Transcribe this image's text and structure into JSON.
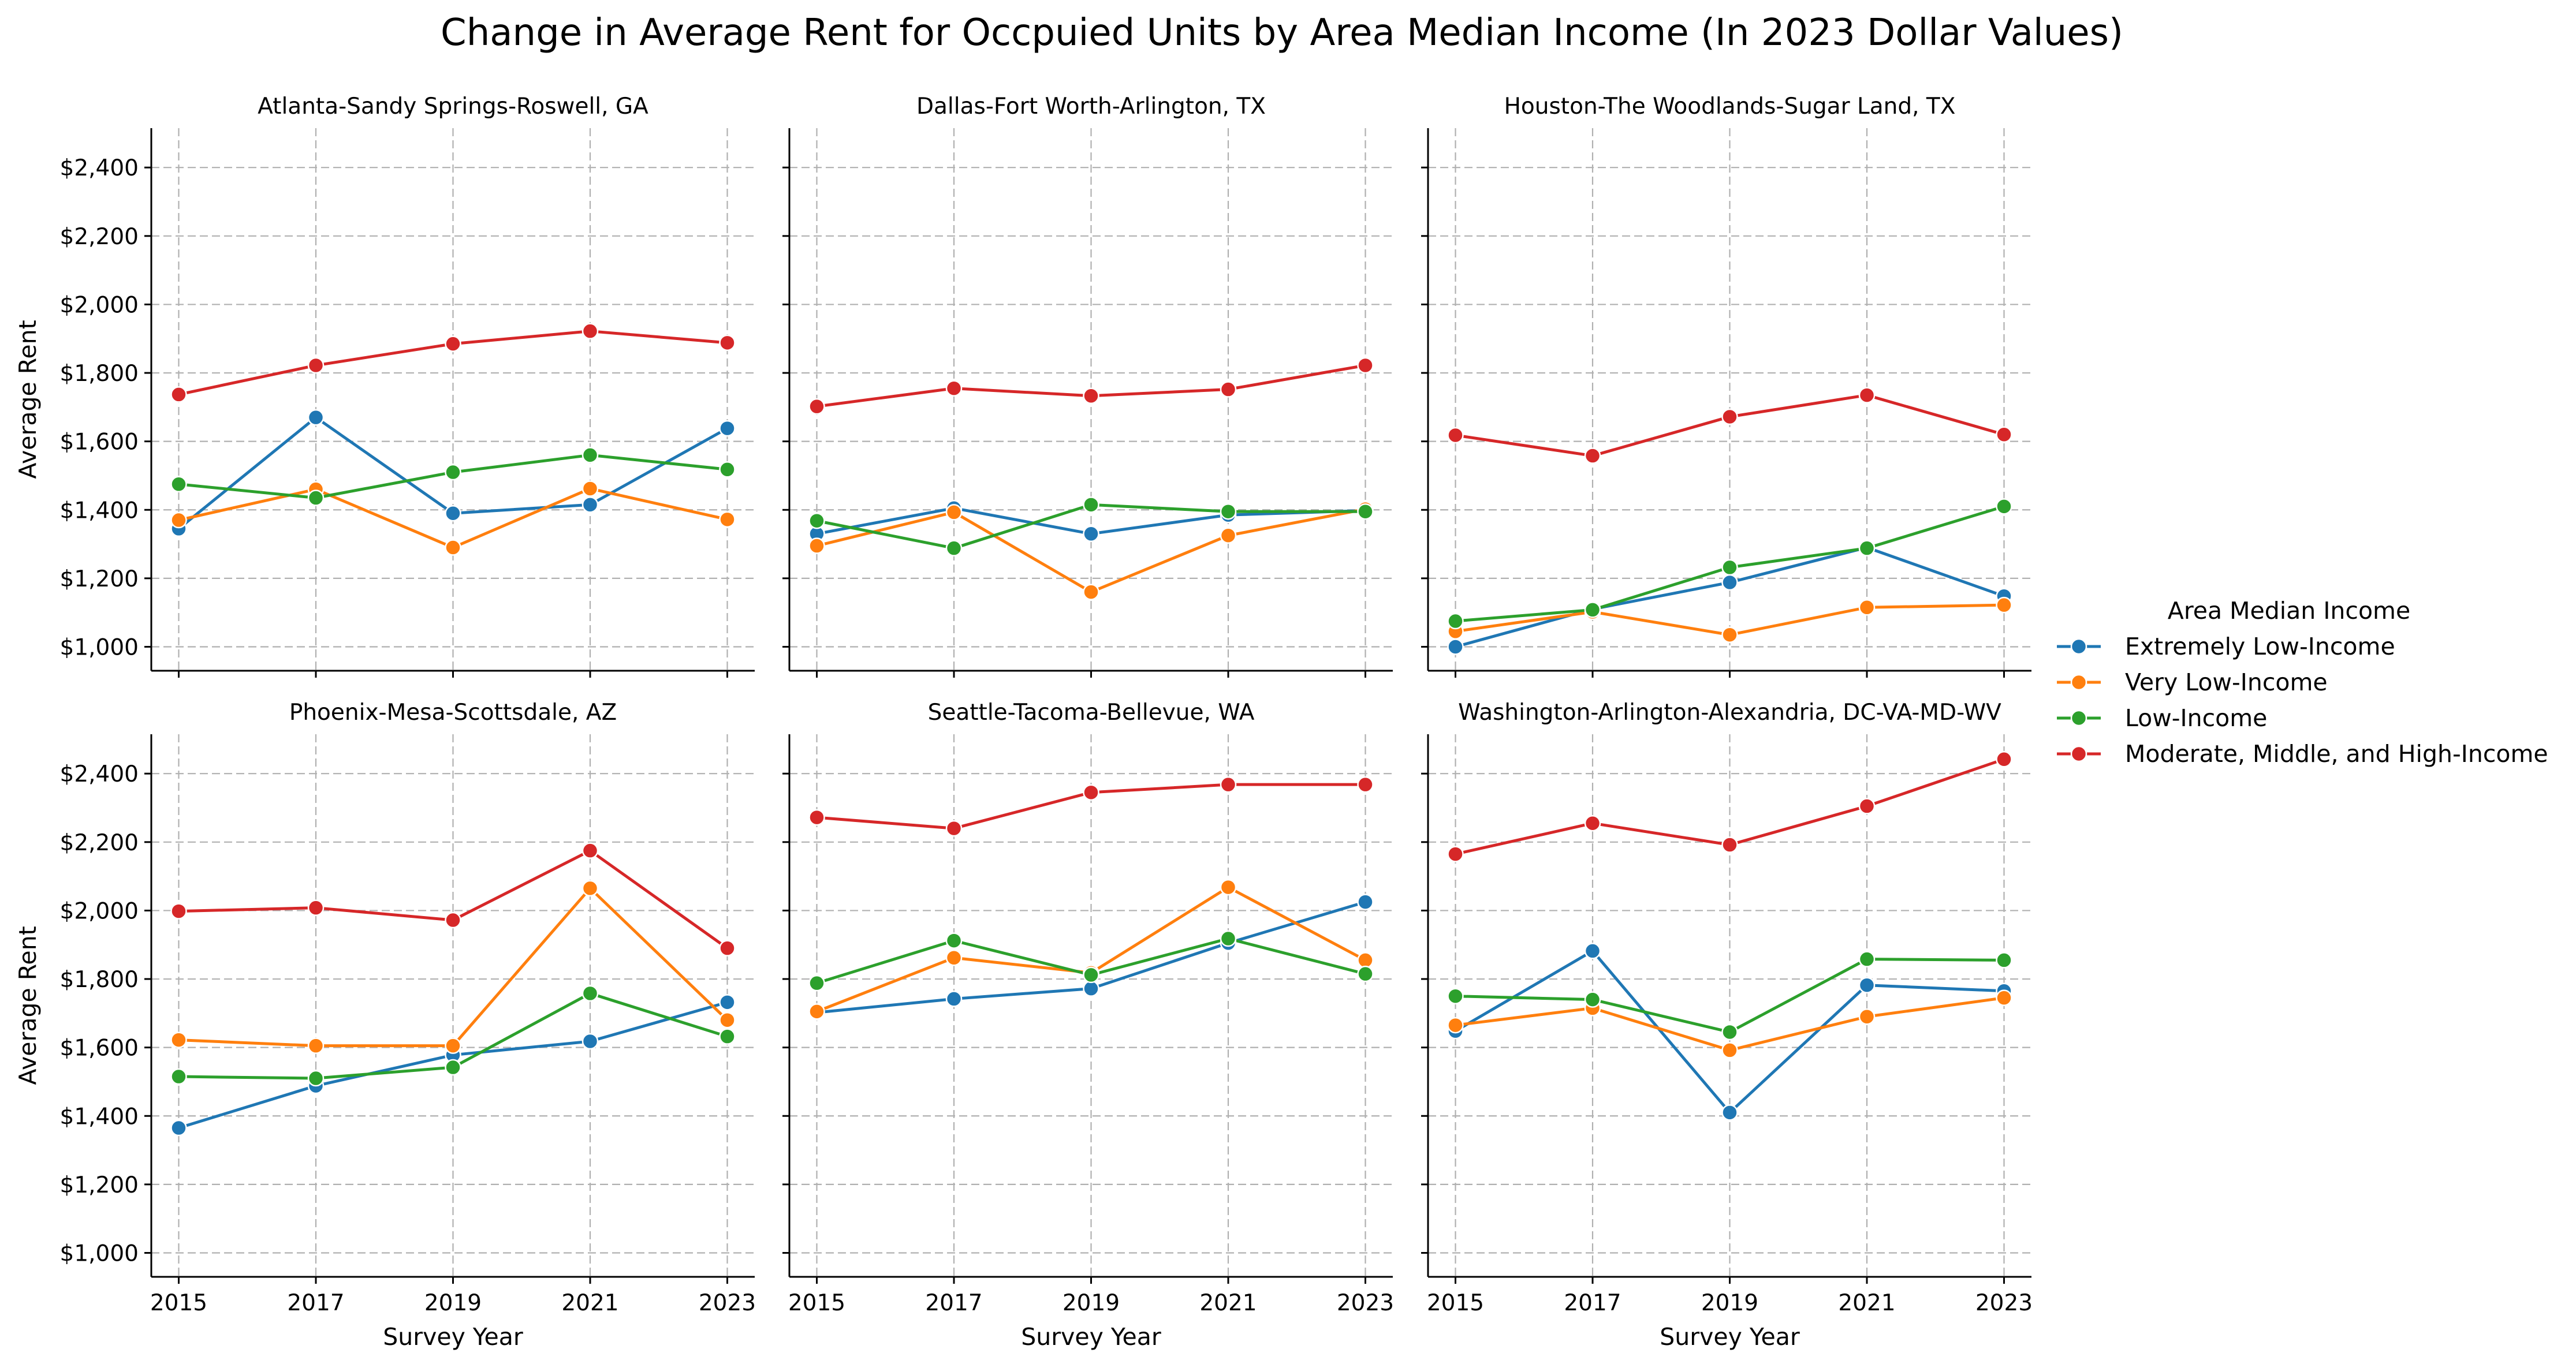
{
  "chart_data": {
    "type": "line",
    "title": "Change in Average Rent for Occpuied Units by Area Median Income (In 2023 Dollar Values)",
    "xlabel": "Survey Year",
    "ylabel": "Average Rent",
    "x": [
      2015,
      2017,
      2019,
      2021,
      2023
    ],
    "x_tick_labels": [
      "2015",
      "2017",
      "2019",
      "2021",
      "2023"
    ],
    "xlim": [
      2014.6,
      2023.4
    ],
    "ylim": [
      930,
      2515
    ],
    "y_ticks": [
      1000,
      1200,
      1400,
      1600,
      1800,
      2000,
      2200,
      2400
    ],
    "y_tick_labels": [
      "$1,000",
      "$1,200",
      "$1,400",
      "$1,600",
      "$1,800",
      "$2,000",
      "$2,200",
      "$2,400"
    ],
    "grid": true,
    "legend": {
      "title": "Area Median Income",
      "placement": "right",
      "entries": [
        {
          "name": "Extremely Low-Income",
          "color": "#1f77b4"
        },
        {
          "name": "Very Low-Income",
          "color": "#ff7f0e"
        },
        {
          "name": "Low-Income",
          "color": "#2ca02c"
        },
        {
          "name": "Moderate, Middle, and High-Income",
          "color": "#d62728"
        }
      ]
    },
    "panels": [
      {
        "title": "Atlanta-Sandy Springs-Roswell, GA",
        "series": [
          {
            "name": "Extremely Low-Income",
            "values": [
              1345,
              1670,
              1390,
              1415,
              1638
            ]
          },
          {
            "name": "Very Low-Income",
            "values": [
              1370,
              1460,
              1290,
              1462,
              1372
            ]
          },
          {
            "name": "Low-Income",
            "values": [
              1475,
              1435,
              1510,
              1560,
              1518
            ]
          },
          {
            "name": "Moderate, Middle, and High-Income",
            "values": [
              1737,
              1822,
              1885,
              1922,
              1888
            ]
          }
        ]
      },
      {
        "title": "Dallas-Fort Worth-Arlington, TX",
        "series": [
          {
            "name": "Extremely Low-Income",
            "values": [
              1330,
              1405,
              1330,
              1385,
              1398
            ]
          },
          {
            "name": "Very Low-Income",
            "values": [
              1295,
              1393,
              1160,
              1325,
              1402
            ]
          },
          {
            "name": "Low-Income",
            "values": [
              1368,
              1288,
              1415,
              1395,
              1395
            ]
          },
          {
            "name": "Moderate, Middle, and High-Income",
            "values": [
              1702,
              1755,
              1733,
              1752,
              1822
            ]
          }
        ]
      },
      {
        "title": "Houston-The Woodlands-Sugar Land, TX",
        "series": [
          {
            "name": "Extremely Low-Income",
            "values": [
              1000,
              1110,
              1188,
              1290,
              1148
            ]
          },
          {
            "name": "Very Low-Income",
            "values": [
              1045,
              1102,
              1035,
              1115,
              1122
            ]
          },
          {
            "name": "Low-Income",
            "values": [
              1075,
              1108,
              1232,
              1288,
              1410
            ]
          },
          {
            "name": "Moderate, Middle, and High-Income",
            "values": [
              1618,
              1558,
              1672,
              1735,
              1620
            ]
          }
        ]
      },
      {
        "title": "Phoenix-Mesa-Scottsdale, AZ",
        "series": [
          {
            "name": "Extremely Low-Income",
            "values": [
              1365,
              1488,
              1578,
              1618,
              1732
            ]
          },
          {
            "name": "Very Low-Income",
            "values": [
              1622,
              1605,
              1605,
              2065,
              1680
            ]
          },
          {
            "name": "Low-Income",
            "values": [
              1515,
              1510,
              1542,
              1758,
              1632
            ]
          },
          {
            "name": "Moderate, Middle, and High-Income",
            "values": [
              1998,
              2008,
              1972,
              2175,
              1890
            ]
          }
        ]
      },
      {
        "title": "Seattle-Tacoma-Bellevue, WA",
        "series": [
          {
            "name": "Extremely Low-Income",
            "values": [
              1702,
              1742,
              1772,
              1905,
              2025
            ]
          },
          {
            "name": "Very Low-Income",
            "values": [
              1705,
              1862,
              1818,
              2068,
              1855
            ]
          },
          {
            "name": "Low-Income",
            "values": [
              1788,
              1912,
              1812,
              1918,
              1815
            ]
          },
          {
            "name": "Moderate, Middle, and High-Income",
            "values": [
              2272,
              2240,
              2345,
              2368,
              2368
            ]
          }
        ]
      },
      {
        "title": "Washington-Arlington-Alexandria, DC-VA-MD-WV",
        "series": [
          {
            "name": "Extremely Low-Income",
            "values": [
              1648,
              1882,
              1410,
              1782,
              1765
            ]
          },
          {
            "name": "Very Low-Income",
            "values": [
              1665,
              1715,
              1592,
              1690,
              1745
            ]
          },
          {
            "name": "Low-Income",
            "values": [
              1750,
              1740,
              1645,
              1858,
              1855
            ]
          },
          {
            "name": "Moderate, Middle, and High-Income",
            "values": [
              2165,
              2255,
              2192,
              2305,
              2442
            ]
          }
        ]
      }
    ]
  }
}
